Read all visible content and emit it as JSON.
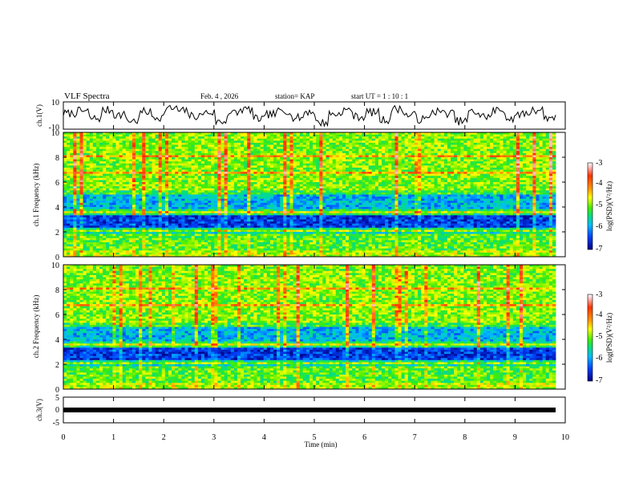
{
  "header": {
    "title": "VLF Spectra",
    "date": "Feb. 4 , 2026",
    "station": "station= KAP",
    "start": "start  UT =   1 : 10 : 1"
  },
  "colorbar": {
    "label": "log(PSD)(V²/Hz)",
    "ticks": [
      "-3",
      "-4",
      "-5",
      "-6",
      "-7"
    ],
    "colors": [
      "#b30000",
      "#ff2200",
      "#ff9900",
      "#ffff00",
      "#44ee00",
      "#00dd77",
      "#00bbff",
      "#0055ff",
      "#0000aa"
    ]
  },
  "chart_data": [
    {
      "type": "line",
      "name": "ch1-waveform",
      "ylabel": "ch.1(V)",
      "ylim": [
        -10,
        10
      ],
      "yticks": [
        "10",
        "-10"
      ],
      "description_series": "noise waveform, approx -5..+5 V",
      "y": [
        1.5,
        3.2,
        -2.1,
        4.0,
        0.5,
        -3.8,
        2.7,
        -1.2,
        5.1,
        3.3,
        -0.4,
        2.2,
        -4.6,
        1.9,
        4.4,
        -2.5,
        0.8,
        3.6,
        -1.7,
        2.9,
        -5.2,
        1.1,
        3.9,
        -0.9,
        2.4,
        -3.1,
        4.7,
        0.2,
        -2.8,
        3.0,
        1.6,
        -4.1,
        2.5,
        -0.6,
        3.8,
        -2.2,
        1.3,
        4.2,
        -1.5,
        2.0
      ]
    },
    {
      "type": "heatmap",
      "name": "ch1-spectrogram",
      "ylabel": "ch.1 Frequency (kHz)",
      "ylim": [
        0,
        10
      ],
      "yticks": [
        "10",
        "8",
        "6",
        "4",
        "2",
        "0"
      ],
      "xlim": [
        0,
        10
      ],
      "zlim": [
        -7,
        -3
      ],
      "zlabel": "log(PSD)(V²/Hz)"
    },
    {
      "type": "heatmap",
      "name": "ch2-spectrogram",
      "ylabel": "ch.2 Frequency (kHz)",
      "ylim": [
        0,
        10
      ],
      "yticks": [
        "10",
        "8",
        "6",
        "4",
        "2",
        "0"
      ],
      "xlim": [
        0,
        10
      ],
      "zlim": [
        -7,
        -3
      ],
      "zlabel": "log(PSD)(V²/Hz)"
    },
    {
      "type": "line",
      "name": "ch3-waveform",
      "ylabel": "ch.3(V)",
      "ylim": [
        -5,
        5
      ],
      "yticks": [
        "5",
        "0",
        "-5"
      ],
      "level": -0.5
    }
  ],
  "xaxis": {
    "title": "Time (min)",
    "ticks": [
      "0",
      "1",
      "2",
      "3",
      "4",
      "5",
      "6",
      "7",
      "8",
      "9",
      "10"
    ],
    "xlim": [
      0,
      10
    ]
  }
}
